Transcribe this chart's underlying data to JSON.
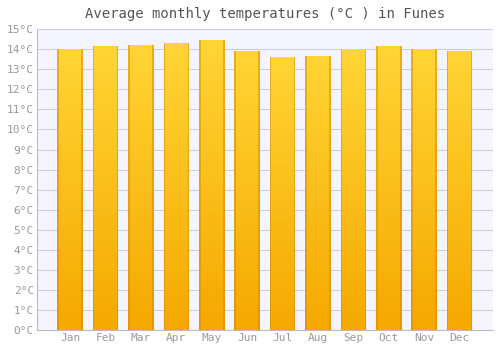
{
  "title": "Average monthly temperatures (°C ) in Funes",
  "months": [
    "Jan",
    "Feb",
    "Mar",
    "Apr",
    "May",
    "Jun",
    "Jul",
    "Aug",
    "Sep",
    "Oct",
    "Nov",
    "Dec"
  ],
  "values": [
    14.0,
    14.15,
    14.2,
    14.3,
    14.45,
    13.9,
    13.6,
    13.65,
    13.95,
    14.15,
    14.0,
    13.9
  ],
  "bar_color_bottom": "#F5A800",
  "bar_color_top": "#FFD030",
  "bar_edge_color": "#D4870A",
  "background_color": "#FFFFFF",
  "plot_bg_color": "#F5F5FF",
  "grid_color": "#CCCCDD",
  "text_color": "#999999",
  "title_color": "#555555",
  "ylim": [
    0,
    15
  ],
  "ytick_step": 1,
  "title_fontsize": 10,
  "tick_fontsize": 8,
  "font_family": "monospace",
  "bar_width": 0.72
}
